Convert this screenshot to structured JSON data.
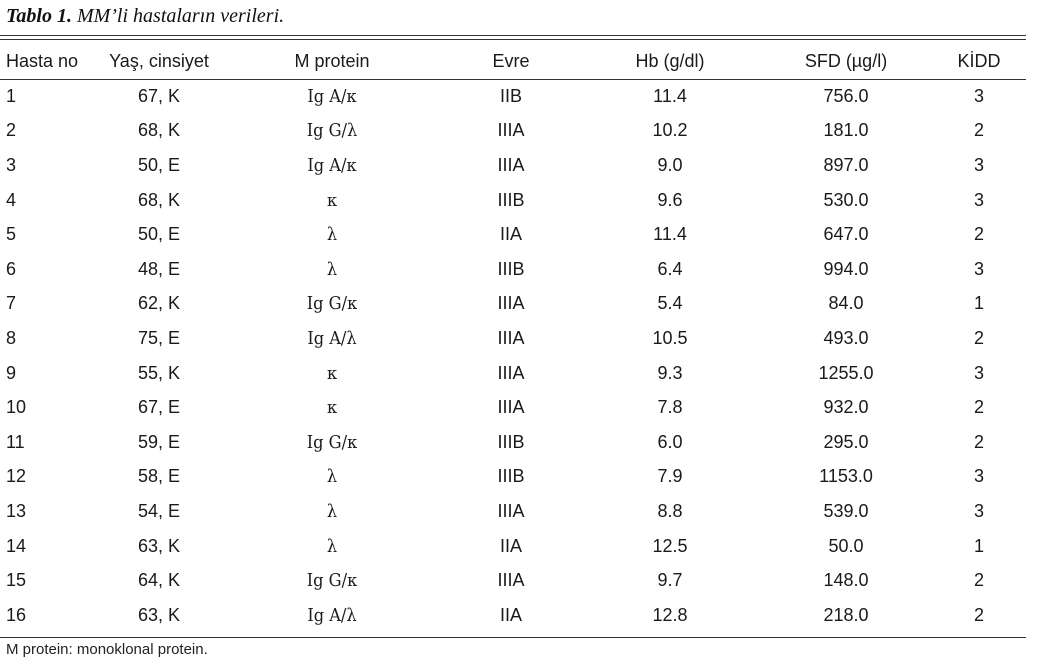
{
  "caption": {
    "label": "Tablo 1.",
    "text": " MM’li hastaların verileri."
  },
  "table": {
    "headers": [
      "Hasta no",
      "Yaş, cinsiyet",
      "M protein",
      "Evre",
      "Hb (g/dl)",
      "SFD (µg/l)",
      "KİDD"
    ],
    "rows": [
      [
        "1",
        "67, K",
        "Ig A/κ",
        "IIB",
        "11.4",
        "756.0",
        "3"
      ],
      [
        "2",
        "68, K",
        "Ig G/λ",
        "IIIA",
        "10.2",
        "181.0",
        "2"
      ],
      [
        "3",
        "50, E",
        "Ig A/κ",
        "IIIA",
        "9.0",
        "897.0",
        "3"
      ],
      [
        "4",
        "68, K",
        "κ",
        "IIIB",
        "9.6",
        "530.0",
        "3"
      ],
      [
        "5",
        "50, E",
        "λ",
        "IIA",
        "11.4",
        "647.0",
        "2"
      ],
      [
        "6",
        "48, E",
        "λ",
        "IIIB",
        "6.4",
        "994.0",
        "3"
      ],
      [
        "7",
        "62, K",
        "Ig G/κ",
        "IIIA",
        "5.4",
        "84.0",
        "1"
      ],
      [
        "8",
        "75, E",
        "Ig A/λ",
        "IIIA",
        "10.5",
        "493.0",
        "2"
      ],
      [
        "9",
        "55, K",
        "κ",
        "IIIA",
        "9.3",
        "1255.0",
        "3"
      ],
      [
        "10",
        "67, E",
        "κ",
        "IIIA",
        "7.8",
        "932.0",
        "2"
      ],
      [
        "11",
        "59, E",
        "Ig G/κ",
        "IIIB",
        "6.0",
        "295.0",
        "2"
      ],
      [
        "12",
        "58, E",
        "λ",
        "IIIB",
        "7.9",
        "1153.0",
        "3"
      ],
      [
        "13",
        "54, E",
        "λ",
        "IIIA",
        "8.8",
        "539.0",
        "3"
      ],
      [
        "14",
        "63, K",
        "λ",
        "IIA",
        "12.5",
        "50.0",
        "1"
      ],
      [
        "15",
        "64, K",
        "Ig G/κ",
        "IIIA",
        "9.7",
        "148.0",
        "2"
      ],
      [
        "16",
        "63, K",
        "Ig A/λ",
        "IIA",
        "12.8",
        "218.0",
        "2"
      ]
    ]
  },
  "footnote": "M protein: monoklonal protein."
}
